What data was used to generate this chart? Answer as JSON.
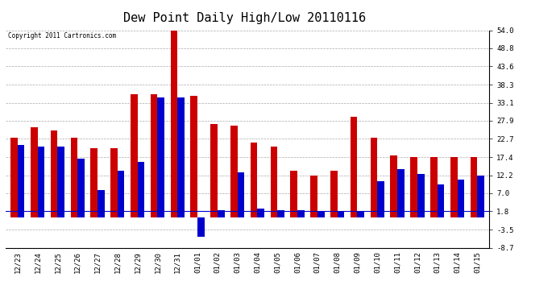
{
  "title": "Dew Point Daily High/Low 20110116",
  "copyright": "Copyright 2011 Cartronics.com",
  "labels": [
    "12/23",
    "12/24",
    "12/25",
    "12/26",
    "12/27",
    "12/28",
    "12/29",
    "12/30",
    "12/31",
    "01/01",
    "01/02",
    "01/03",
    "01/04",
    "01/05",
    "01/06",
    "01/07",
    "01/08",
    "01/09",
    "01/10",
    "01/11",
    "01/12",
    "01/13",
    "01/14",
    "01/15"
  ],
  "highs": [
    23.0,
    26.0,
    25.0,
    23.0,
    20.0,
    20.0,
    35.5,
    35.5,
    54.0,
    35.0,
    27.0,
    26.5,
    21.5,
    20.5,
    13.5,
    12.2,
    13.5,
    29.0,
    23.0,
    18.0,
    17.5,
    17.5,
    17.5,
    17.5
  ],
  "lows": [
    21.0,
    20.5,
    20.5,
    17.0,
    8.0,
    13.5,
    16.0,
    34.5,
    34.5,
    -5.5,
    2.0,
    13.0,
    2.5,
    2.0,
    2.0,
    1.8,
    1.8,
    1.8,
    10.5,
    14.0,
    12.5,
    9.5,
    11.0,
    12.0
  ],
  "yticks": [
    54.0,
    48.8,
    43.6,
    38.3,
    33.1,
    27.9,
    22.7,
    17.4,
    12.2,
    7.0,
    1.8,
    -3.5,
    -8.7
  ],
  "ylim": [
    -8.7,
    54.0
  ],
  "bar_width": 0.35,
  "high_color": "#cc0000",
  "low_color": "#0000cc",
  "bg_color": "#ffffff",
  "grid_color": "#aaaaaa",
  "title_fontsize": 11,
  "tick_fontsize": 6.5,
  "hline_y": 1.8,
  "hline_color": "#0000cc",
  "figwidth": 6.9,
  "figheight": 3.75,
  "dpi": 100
}
